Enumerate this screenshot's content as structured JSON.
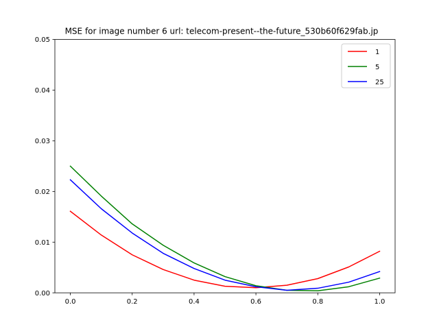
{
  "chart_data": {
    "type": "line",
    "title": "MSE for image number 6 url: telecom-present--the-future_530b60f629fab.jp",
    "xlabel": "",
    "ylabel": "",
    "xlim": [
      -0.05,
      1.05
    ],
    "ylim": [
      0,
      0.05
    ],
    "xticks": [
      0.0,
      0.2,
      0.4,
      0.6,
      0.8,
      1.0
    ],
    "xtick_labels": [
      "0.0",
      "0.2",
      "0.4",
      "0.6",
      "0.8",
      "1.0"
    ],
    "yticks": [
      0.0,
      0.01,
      0.02,
      0.03,
      0.04,
      0.05
    ],
    "ytick_labels": [
      "0.00",
      "0.01",
      "0.02",
      "0.03",
      "0.04",
      "0.05"
    ],
    "grid": false,
    "legend_position": "top-right",
    "x": [
      0.0,
      0.1,
      0.2,
      0.3,
      0.4,
      0.5,
      0.6,
      0.7,
      0.8,
      0.9,
      1.0
    ],
    "series": [
      {
        "name": "1",
        "color": "#ff0000",
        "values": [
          0.0161,
          0.0114,
          0.0075,
          0.0046,
          0.0025,
          0.0013,
          0.001,
          0.0015,
          0.0028,
          0.0051,
          0.0082
        ]
      },
      {
        "name": "5",
        "color": "#008000",
        "values": [
          0.025,
          0.0191,
          0.0136,
          0.0094,
          0.0059,
          0.0032,
          0.0014,
          0.0005,
          0.0004,
          0.0012,
          0.0029
        ]
      },
      {
        "name": "25",
        "color": "#0000ff",
        "values": [
          0.0223,
          0.0166,
          0.0118,
          0.0078,
          0.0048,
          0.0025,
          0.0012,
          0.0005,
          0.0009,
          0.0021,
          0.0042
        ]
      }
    ]
  }
}
